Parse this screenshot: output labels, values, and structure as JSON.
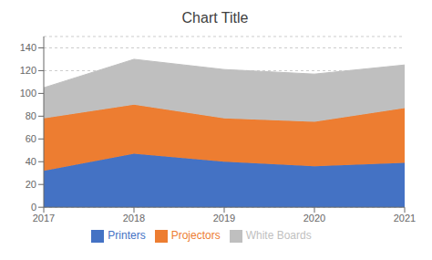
{
  "chart_data": {
    "type": "area",
    "title": "Chart Title",
    "x": [
      2017,
      2018,
      2019,
      2020,
      2021
    ],
    "xlim": [
      2017,
      2021
    ],
    "xticks": [
      2017,
      2018,
      2019,
      2020,
      2021
    ],
    "series": [
      {
        "name": "Printers",
        "color": "#4472c4",
        "values": [
          32,
          47,
          40,
          36,
          39
        ]
      },
      {
        "name": "Projectors",
        "color": "#ed7d31",
        "values": [
          46,
          43,
          38,
          39,
          48
        ]
      },
      {
        "name": "White Boards",
        "color": "#bfbfbf",
        "values": [
          27,
          40,
          43,
          42,
          38
        ]
      }
    ],
    "ylim": [
      0,
      150
    ],
    "yticks": [
      0,
      20,
      40,
      60,
      80,
      100,
      120,
      140
    ],
    "stacked": true,
    "grid": true,
    "legend": "bottom"
  }
}
